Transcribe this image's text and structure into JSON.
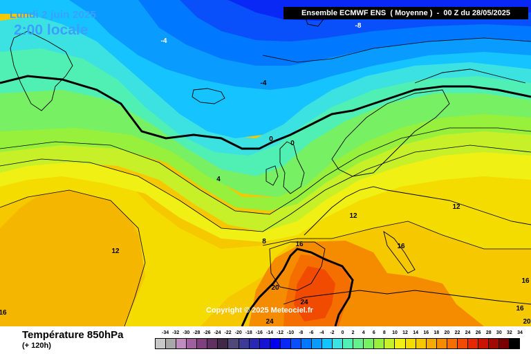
{
  "map": {
    "date": "Lundi 2 juin 2025",
    "time": "2:00 locale",
    "header": "Ensemble ECMWF ENS  ( Moyenne )  -  00 Z du 28/05/2025",
    "copyright": "Copyright © 2025 Meteociel.fr",
    "contour_labels": [
      "-8",
      "-4",
      "-4",
      "0",
      "0",
      "4",
      "8",
      "12",
      "12",
      "12",
      "16",
      "16",
      "16",
      "16",
      "16",
      "20",
      "24",
      "24",
      "20"
    ]
  },
  "footer": {
    "title": "Température 850hPa",
    "subtitle": "(+ 120h)"
  },
  "legend": {
    "values": [
      "-34",
      "-32",
      "-30",
      "-28",
      "-26",
      "-24",
      "-22",
      "-20",
      "-18",
      "-16",
      "-14",
      "-12",
      "-10",
      "-8",
      "-6",
      "-4",
      "-2",
      "0",
      "2",
      "4",
      "6",
      "8",
      "10",
      "12",
      "14",
      "16",
      "18",
      "20",
      "22",
      "24",
      "26",
      "28",
      "30",
      "32",
      "34"
    ],
    "colors": [
      "#c8c8c8",
      "#a8a8a8",
      "#c08cc0",
      "#a060a0",
      "#804080",
      "#603060",
      "#402848",
      "#504878",
      "#3c3c96",
      "#2828b4",
      "#1414d2",
      "#0000f0",
      "#0a28f5",
      "#0a50fa",
      "#0078ff",
      "#0a9bff",
      "#14c3ff",
      "#3ce1e1",
      "#50f0b4",
      "#64f08c",
      "#78f064",
      "#96f03c",
      "#c8f028",
      "#f0f014",
      "#f5dc00",
      "#f5c800",
      "#f5aa00",
      "#f58c00",
      "#f56e00",
      "#f04b00",
      "#e62800",
      "#c81400",
      "#a00a00",
      "#780000",
      "#000000"
    ]
  }
}
